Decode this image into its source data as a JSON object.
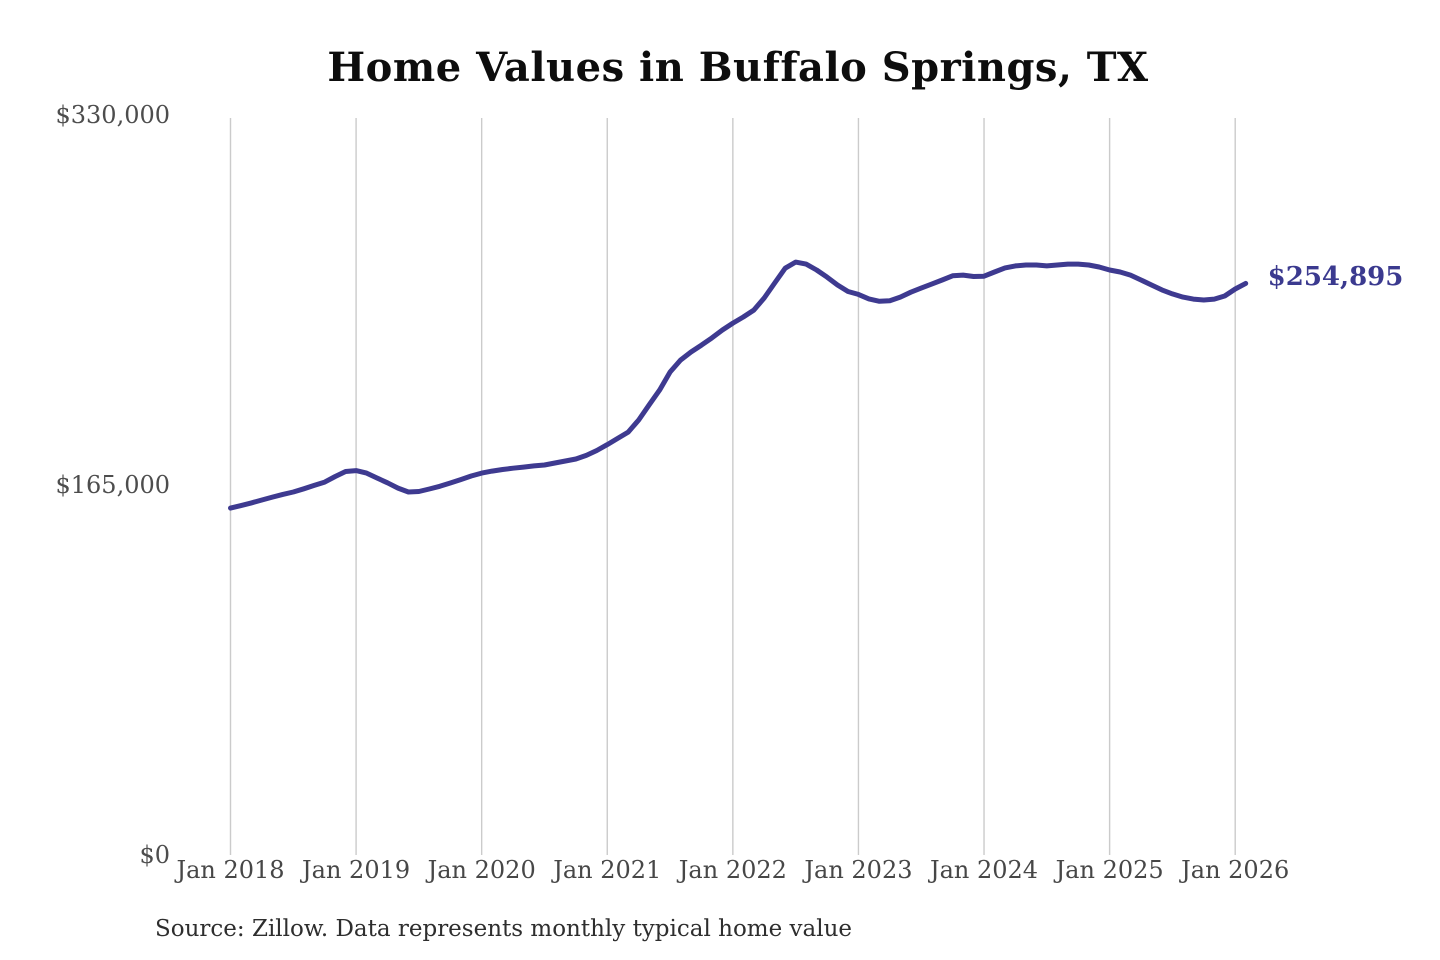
{
  "colors": {
    "line": "#3e3a90",
    "end_label": "#3b3a8f",
    "gridline": "#cbcbcb",
    "axis_text": "#4d4d4d",
    "title_text": "#0d0d0d",
    "source_text": "#2e2e2e",
    "background": "#ffffff"
  },
  "source_note": "Source: Zillow. Data represents monthly typical home value",
  "chart_data": {
    "type": "line",
    "title": "Home Values in Buffalo Springs, TX",
    "xlabel": "",
    "ylabel": "",
    "ylim": [
      0,
      330000
    ],
    "grid": "vertical-only",
    "legend": "none",
    "x_ticks": [
      "Jan 2018",
      "Jan 2019",
      "Jan 2020",
      "Jan 2021",
      "Jan 2022",
      "Jan 2023",
      "Jan 2024",
      "Jan 2025",
      "Jan 2026"
    ],
    "y_ticks": [
      {
        "label": "$330,000",
        "value": 330000
      },
      {
        "label": "$165,000",
        "value": 165000
      },
      {
        "label": "$0",
        "value": 0
      }
    ],
    "end_label": "$254,895",
    "end_value": 254895,
    "x_start": "Jan 2018",
    "x_end": "Feb 2026",
    "points_per_year": 12,
    "series": [
      {
        "name": "Monthly typical home value",
        "values": [
          154700,
          155800,
          157000,
          158300,
          159600,
          160800,
          161900,
          163300,
          164800,
          166300,
          168800,
          171000,
          171400,
          170300,
          168100,
          166000,
          163600,
          161900,
          162100,
          163200,
          164400,
          165900,
          167400,
          169000,
          170300,
          171200,
          171900,
          172500,
          173000,
          173500,
          173900,
          174800,
          175700,
          176600,
          178200,
          180400,
          183000,
          185800,
          188600,
          194000,
          200700,
          207300,
          215400,
          220700,
          224300,
          227400,
          230600,
          234100,
          237200,
          239900,
          243000,
          248400,
          255100,
          261700,
          264400,
          263500,
          260900,
          257700,
          254200,
          251300,
          250000,
          248000,
          246900,
          247200,
          248800,
          251000,
          252800,
          254600,
          256400,
          258300,
          258600,
          258000,
          258100,
          260000,
          261800,
          262700,
          263100,
          263100,
          262700,
          263100,
          263500,
          263500,
          263100,
          262200,
          260900,
          260000,
          258600,
          256400,
          254200,
          252000,
          250200,
          248800,
          247900,
          247500,
          247900,
          249300,
          252400,
          254895
        ]
      }
    ]
  }
}
